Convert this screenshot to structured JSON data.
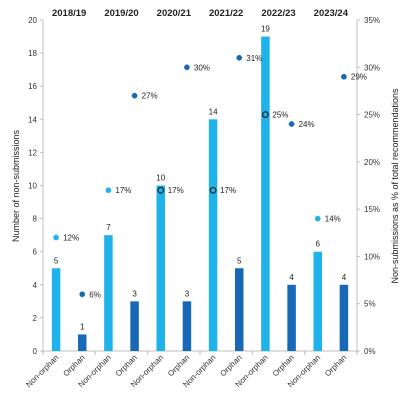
{
  "chart_data": {
    "type": "bar",
    "categories": [
      "Non-orphan",
      "Orphan",
      "Non-orphan",
      "Orphan",
      "Non-orphan",
      "Orphan",
      "Non-orphan",
      "Orphan",
      "Non-orphan",
      "Orphan",
      "Non-orphan",
      "Orphan"
    ],
    "periods": [
      "2018/19",
      "2019/20",
      "2020/21",
      "2021/22",
      "2022/23",
      "2023/24"
    ],
    "series": [
      {
        "type": "bar",
        "values": [
          5,
          1,
          7,
          3,
          10,
          3,
          14,
          5,
          19,
          4,
          6,
          4
        ],
        "value_labels": [
          "5",
          "1",
          "7",
          "3",
          "10",
          "3",
          "14",
          "5",
          "19",
          "4",
          "6",
          "4"
        ],
        "colors": [
          "#1EB4EB",
          "#1769B7",
          "#1EB4EB",
          "#1769B7",
          "#1EB4EB",
          "#1769B7",
          "#1EB4EB",
          "#1769B7",
          "#1EB4EB",
          "#1769B7",
          "#1EB4EB",
          "#1769B7"
        ]
      },
      {
        "type": "scatter",
        "axis": "right",
        "values": [
          12,
          6,
          17,
          27,
          17,
          30,
          17,
          31,
          25,
          24,
          14,
          29
        ],
        "value_labels": [
          "12%",
          "6%",
          "17%",
          "27%",
          "17%",
          "30%",
          "17%",
          "31%",
          "25%",
          "24%",
          "14%",
          "29%"
        ],
        "marker_style": [
          "filled",
          "filled",
          "filled",
          "filled",
          "hollow",
          "filled",
          "hollow",
          "filled",
          "hollow",
          "filled",
          "filled",
          "filled"
        ]
      }
    ],
    "y_left": {
      "label": "Number of non-submissions",
      "ylim": [
        0,
        20
      ],
      "ticks": [
        0,
        2,
        4,
        6,
        8,
        10,
        12,
        14,
        16,
        18,
        20
      ]
    },
    "y_right": {
      "label": "Non-submissions as % of total recommendations",
      "ylim": [
        0,
        35
      ],
      "ticks": [
        "0%",
        "5%",
        "10%",
        "15%",
        "20%",
        "25%",
        "30%",
        "35%"
      ],
      "tick_values": [
        0,
        5,
        10,
        15,
        20,
        25,
        30,
        35
      ]
    },
    "grid": false,
    "colors": {
      "non_orphan": "#1EB4EB",
      "orphan": "#1769B7",
      "axis": "#BFBFBF",
      "text": "#333333"
    }
  }
}
